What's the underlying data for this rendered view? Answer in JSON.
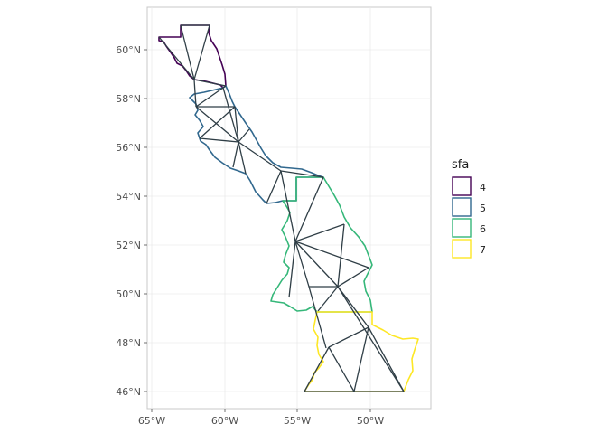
{
  "map": {
    "x_ticks": [
      "65°W",
      "60°W",
      "55°W",
      "50°W"
    ],
    "y_ticks": [
      "46°N",
      "48°N",
      "50°N",
      "52°N",
      "54°N",
      "56°N",
      "58°N",
      "60°N"
    ],
    "legend": {
      "title": "sfa",
      "items": [
        {
          "label": "4",
          "color": "#440154"
        },
        {
          "label": "5",
          "color": "#31688e"
        },
        {
          "label": "6",
          "color": "#35b779"
        },
        {
          "label": "7",
          "color": "#fde725"
        }
      ]
    },
    "mesh_color": "#2f3e46",
    "grid_color": "#ebebeb",
    "panel_border_color": "#bfbfbf"
  }
}
